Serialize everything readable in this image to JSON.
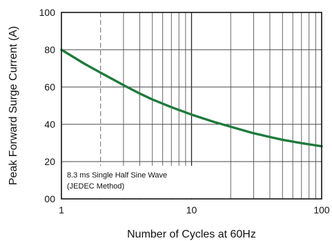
{
  "chart_data": {
    "type": "line",
    "title": "",
    "xlabel": "Number of Cycles at 60Hz",
    "ylabel": "Peak Forward Surge Current (A)",
    "xscale": "log",
    "xlim": [
      1,
      100
    ],
    "ylim": [
      0,
      100
    ],
    "x_ticks": [
      1,
      10,
      100
    ],
    "x_tick_labels": [
      "1",
      "10",
      "100"
    ],
    "y_ticks": [
      0,
      20,
      40,
      60,
      80,
      100
    ],
    "y_tick_labels": [
      "00",
      "20",
      "40",
      "60",
      "80",
      "100"
    ],
    "grid": true,
    "series": [
      {
        "name": "",
        "color": "#1f7a3c",
        "x": [
          1,
          1.5,
          2,
          3,
          4,
          5,
          7,
          10,
          15,
          20,
          30,
          40,
          50,
          70,
          100
        ],
        "y": [
          80,
          72.5,
          67.7,
          61,
          56.5,
          53.3,
          49.2,
          45.2,
          41.2,
          38.7,
          35.2,
          33.2,
          31.7,
          29.9,
          28.2
        ]
      }
    ],
    "annotation": {
      "lines": [
        "8.3 ms Single Half Sine Wave",
        "(JEDEC Method)"
      ]
    }
  }
}
